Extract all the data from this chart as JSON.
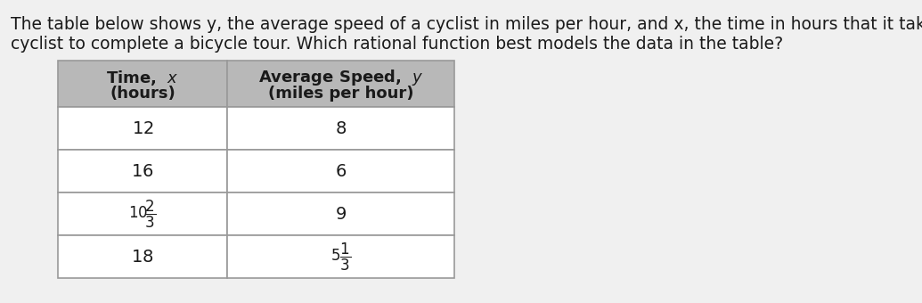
{
  "paragraph_line1": "The table below shows y, the average speed of a cyclist in miles per hour, and x, the time in hours that it takes the",
  "paragraph_line2": "cyclist to complete a bicycle tour. Which rational function best models the data in the table?",
  "header_col1": "Time,  x\n(hours)",
  "header_col2": "Average Speed,  y\n(miles per hour)",
  "x_labels": [
    "12",
    "16",
    "10\\frac{2}{3}",
    "18"
  ],
  "y_labels": [
    "8",
    "6",
    "9",
    "5\\frac{1}{3}"
  ],
  "header_bg": "#b8b8b8",
  "row_bg": "#ffffff",
  "border_color": "#999999",
  "text_color": "#1a1a1a",
  "bg_color": "#e8e8e8",
  "page_bg": "#f0f0f0",
  "paragraph_fontsize": 13.5,
  "header_fontsize": 13,
  "cell_fontsize": 14
}
